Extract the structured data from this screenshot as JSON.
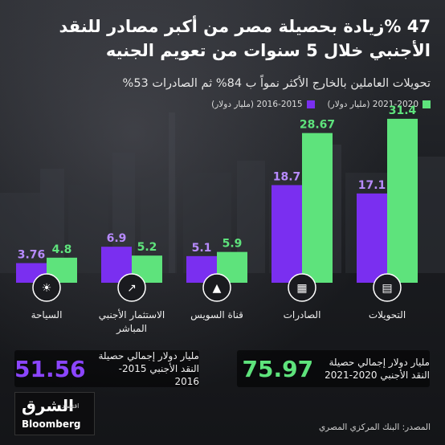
{
  "title_line1": "47 %زيادة بحصيلة مصر من  أكبر  مصادر للنقد",
  "title_line2": "الأجنبي خلال 5 سنوات من تعويم الجنيه",
  "subtitle": "تحويلات العاملين بالخارج  الأكثر نمواً ب 84% ثم الصادرات 53%",
  "colors": {
    "purple": "#7a2ff0",
    "green": "#5ee37c",
    "green_text": "#5ee37c"
  },
  "chart_data": {
    "type": "bar",
    "categories": [
      "التحويلات",
      "الصادرات",
      "قناة السويس",
      "الاستثمار الأجنبي المباشر",
      "السياحة"
    ],
    "icons": [
      "money-icon",
      "container-icon",
      "ship-icon",
      "growth-chart-icon",
      "sun-sand-icon"
    ],
    "series": [
      {
        "name": "2016-2015 (مليار دولار)",
        "values": [
          17.1,
          18.7,
          5.1,
          6.9,
          3.76
        ],
        "labels": [
          "17.1",
          "18.7",
          "5.1",
          "6.9",
          "3.76"
        ],
        "color": "#7a2ff0"
      },
      {
        "name": "2021-2020 (مليار دولار)",
        "values": [
          31.4,
          28.67,
          5.9,
          5.2,
          4.8
        ],
        "labels": [
          "31.4",
          "28.67",
          "5.9",
          "5.2",
          "4.8"
        ],
        "color": "#5ee37c"
      }
    ],
    "legend_placement": "top-right"
  },
  "categories_display": [
    {
      "line1": "التحويلات",
      "line2": ""
    },
    {
      "line1": "الصادرات",
      "line2": ""
    },
    {
      "line1": "قناة السويس",
      "line2": ""
    },
    {
      "line1": "الاستثمار الأجنبي",
      "line2": "المباشر"
    },
    {
      "line1": "السياحة",
      "line2": ""
    }
  ],
  "totals": [
    {
      "value": "75.97",
      "line1": "مليار دولار إجمالي حصيلة",
      "line2": "النقد الأجنبي 2020-2021",
      "color": "#5ee37c"
    },
    {
      "value": "51.56",
      "line1": "مليار دولار إجمالي حصيلة",
      "line2": "النقد الأجنبي 2015-2016",
      "color": "#7a2ff0"
    }
  ],
  "logo": {
    "arabic": "الشرق",
    "arabic_small": "اقتصاد",
    "english": "Bloomberg"
  },
  "source": "المصدر: البنك المركزي المصري"
}
